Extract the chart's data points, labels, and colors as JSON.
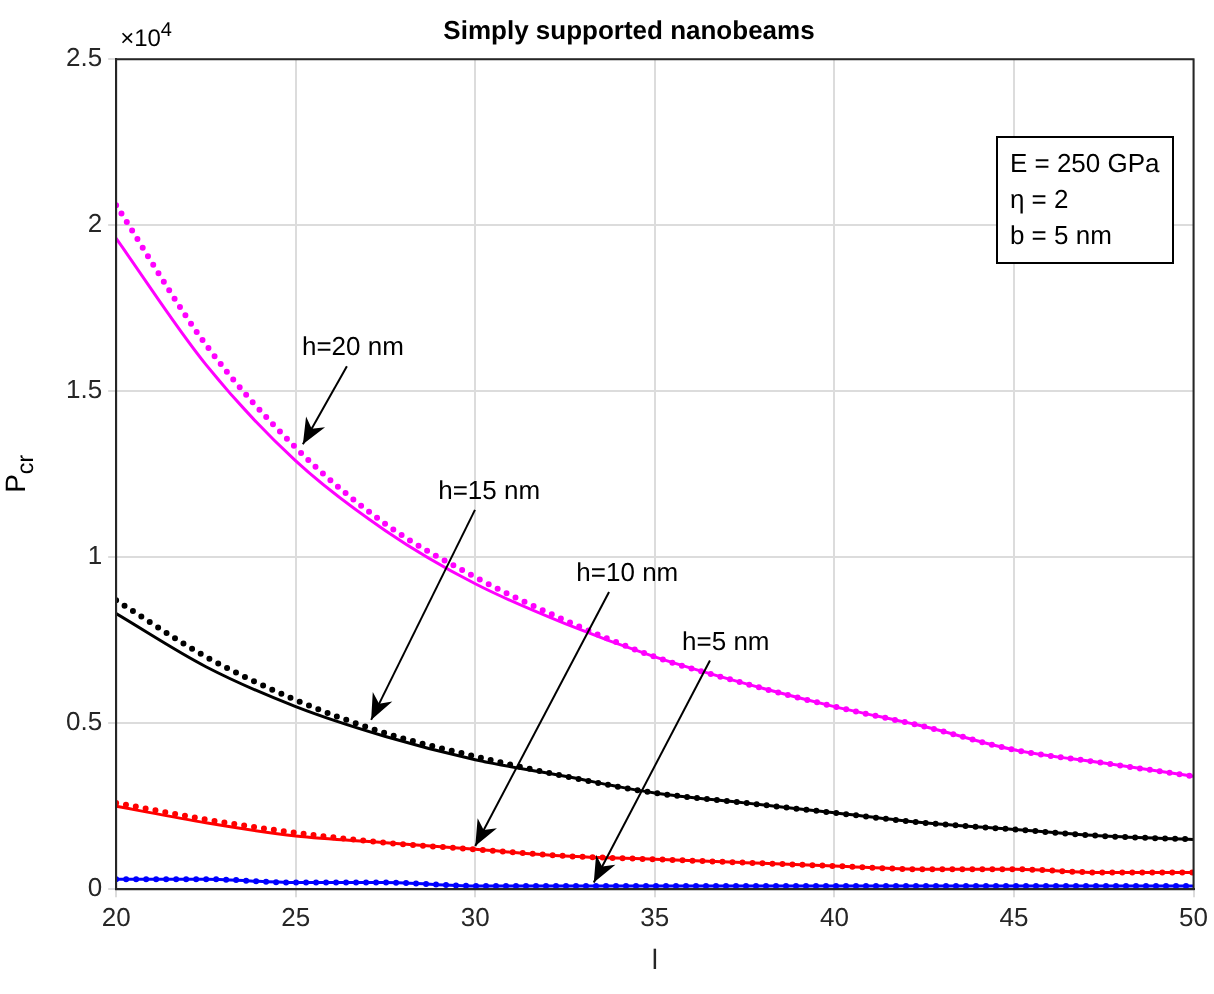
{
  "chart_data": {
    "type": "line",
    "title": "Simply supported nanobeams",
    "xlabel": "l",
    "ylabel": "P$_{cr}$",
    "x": [
      20,
      22.5,
      25,
      27.5,
      30,
      32.5,
      35,
      37.5,
      40,
      42.5,
      45,
      47.5,
      50
    ],
    "xlim": [
      20,
      50
    ],
    "xticks": [
      20,
      25,
      30,
      35,
      40,
      45,
      50
    ],
    "ylim": [
      0,
      2.5
    ],
    "yticks": [
      0,
      0.5,
      1,
      1.5,
      2,
      2.5
    ],
    "grid": true,
    "legend": false,
    "marker": "none",
    "series": [
      {
        "color": "#ff00ff",
        "line_style": "solid",
        "values": [
          1.96,
          1.58,
          1.29,
          1.08,
          0.92,
          0.8,
          0.7,
          0.62,
          0.55,
          0.49,
          0.42,
          0.38,
          0.34
        ]
      },
      {
        "color": "#ff00ff",
        "line_style": "dotted",
        "values": [
          2.06,
          1.64,
          1.33,
          1.1,
          0.94,
          0.81,
          0.7,
          0.62,
          0.55,
          0.49,
          0.42,
          0.38,
          0.34
        ]
      },
      {
        "color": "#000000",
        "line_style": "solid",
        "values": [
          0.83,
          0.67,
          0.55,
          0.46,
          0.39,
          0.34,
          0.29,
          0.26,
          0.23,
          0.2,
          0.18,
          0.16,
          0.15
        ]
      },
      {
        "color": "#000000",
        "line_style": "dotted",
        "values": [
          0.87,
          0.7,
          0.57,
          0.47,
          0.4,
          0.34,
          0.29,
          0.26,
          0.23,
          0.2,
          0.18,
          0.16,
          0.15
        ]
      },
      {
        "color": "#ff0000",
        "line_style": "solid",
        "values": [
          0.25,
          0.2,
          0.16,
          0.14,
          0.12,
          0.1,
          0.09,
          0.08,
          0.07,
          0.06,
          0.06,
          0.05,
          0.05
        ]
      },
      {
        "color": "#ff0000",
        "line_style": "dotted",
        "values": [
          0.26,
          0.21,
          0.17,
          0.14,
          0.12,
          0.1,
          0.09,
          0.08,
          0.07,
          0.06,
          0.06,
          0.05,
          0.05
        ]
      },
      {
        "color": "#0000ff",
        "line_style": "solid",
        "values": [
          0.03,
          0.03,
          0.02,
          0.02,
          0.01,
          0.01,
          0.01,
          0.01,
          0.01,
          0.01,
          0.01,
          0.01,
          0.01
        ]
      },
      {
        "color": "#0000ff",
        "line_style": "dotted",
        "values": [
          0.03,
          0.03,
          0.02,
          0.02,
          0.01,
          0.01,
          0.01,
          0.01,
          0.01,
          0.01,
          0.01,
          0.01,
          0.01
        ]
      }
    ],
    "annotations": [
      "×10$^{4}$",
      "E = 250 GPa",
      "η = 2",
      "b = 5 nm",
      {
        "text": "h=20 nm",
        "x": 25.2,
        "y": 1.34
      },
      {
        "text": "h=15 nm",
        "x": 27.1,
        "y": 0.51
      },
      {
        "text": "h=10 nm",
        "x": 30,
        "y": 0.13
      },
      {
        "text": "h=5 nm",
        "x": 33.3,
        "y": 0.02
      }
    ]
  }
}
